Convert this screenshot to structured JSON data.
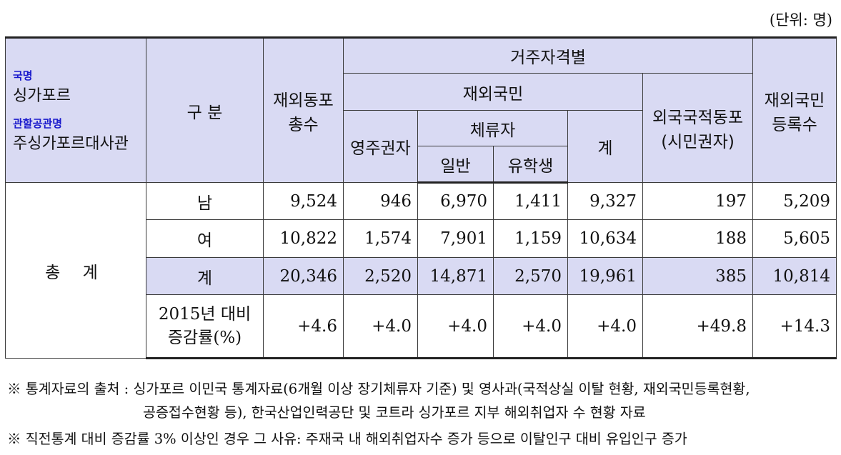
{
  "unit": "(단위: 명)",
  "header": {
    "country_label": "국명",
    "country_value": "싱가포르",
    "office_label": "관할공관명",
    "office_value": "주싱가포르대사관",
    "category": "구 분",
    "total_overseas": "재외동포 총수",
    "residence_group": "거주자격별",
    "overseas_nationals": "재외국민",
    "permanent": "영주권자",
    "sojourners": "체류자",
    "general": "일반",
    "students": "유학생",
    "subtotal": "계",
    "foreign_nationals": "외국국적동포 (시민권자)",
    "registered": "재외국민 등록수"
  },
  "total_label": "총  계",
  "rows": [
    {
      "label": "남",
      "total": "9,524",
      "permanent": "946",
      "general": "6,970",
      "students": "1,411",
      "subtotal": "9,327",
      "foreign": "197",
      "registered": "5,209"
    },
    {
      "label": "여",
      "total": "10,822",
      "permanent": "1,574",
      "general": "7,901",
      "students": "1,159",
      "subtotal": "10,634",
      "foreign": "188",
      "registered": "5,605"
    },
    {
      "label": "계",
      "total": "20,346",
      "permanent": "2,520",
      "general": "14,871",
      "students": "2,570",
      "subtotal": "19,961",
      "foreign": "385",
      "registered": "10,814"
    },
    {
      "label": "2015년 대비 증감률(%)",
      "total": "+4.6",
      "permanent": "+4.0",
      "general": "+4.0",
      "students": "+4.0",
      "subtotal": "+4.0",
      "foreign": "+49.8",
      "registered": "+14.3"
    }
  ],
  "notes": {
    "source_line1": "※ 통계자료의 출처 : 싱가포르 이민국 통계자료(6개월 이상 장기체류자 기준) 및 영사과(국적상실 이탈 현황, 재외국민등록현황,",
    "source_line2": "공증접수현황 등), 한국산업인력공단 및 코트라 싱가포르 지부 해외취업자 수 현황 자료",
    "reason": "※ 직전통계 대비 증감률 3% 이상인 경우 그 사유: 주재국 내 해외취업자수 증가 등으로 이탈인구 대비 유입인구 증가"
  }
}
